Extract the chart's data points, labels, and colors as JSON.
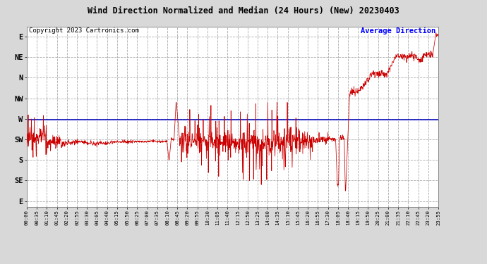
{
  "title": "Wind Direction Normalized and Median (24 Hours) (New) 20230403",
  "copyright": "Copyright 2023 Cartronics.com",
  "legend_label": "Average Direction",
  "background_color": "#d8d8d8",
  "plot_bg_color": "#ffffff",
  "grid_color": "#aaaaaa",
  "line_color": "#cc0000",
  "avg_line_color": "#0000bb",
  "title_color": "#000000",
  "copyright_color": "#000000",
  "legend_color": "#0000ff",
  "ytick_labels": [
    "E",
    "NE",
    "N",
    "NW",
    "W",
    "SW",
    "S",
    "SE",
    "E"
  ],
  "ytick_values": [
    8,
    7,
    6,
    5,
    4,
    3,
    2,
    1,
    0
  ],
  "ylim": [
    -0.3,
    8.5
  ],
  "avg_line_y": 3.95,
  "xtick_labels": [
    "00:00",
    "00:35",
    "01:10",
    "01:45",
    "02:20",
    "02:55",
    "03:30",
    "04:05",
    "04:40",
    "05:15",
    "05:50",
    "06:25",
    "07:00",
    "07:35",
    "08:10",
    "08:45",
    "09:20",
    "09:55",
    "10:30",
    "11:05",
    "11:40",
    "12:15",
    "12:50",
    "13:25",
    "14:00",
    "14:35",
    "15:10",
    "15:45",
    "16:20",
    "16:55",
    "17:30",
    "18:05",
    "18:40",
    "19:15",
    "19:50",
    "20:25",
    "21:00",
    "21:35",
    "22:10",
    "22:45",
    "23:20",
    "23:55"
  ],
  "n_xticks": 42
}
